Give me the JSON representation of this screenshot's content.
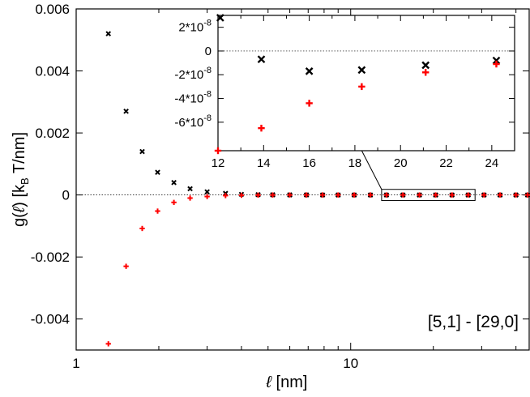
{
  "chart_data": [
    {
      "type": "scatter",
      "xscale": "log",
      "xlim": [
        1,
        45
      ],
      "ylim": [
        -0.005,
        0.006
      ],
      "xticks": [
        1,
        10
      ],
      "xtick_labels": [
        "1",
        "10"
      ],
      "yticks": [
        -0.004,
        -0.002,
        0,
        0.002,
        0.004,
        0.006
      ],
      "ytick_labels": [
        "-0.004",
        "-0.002",
        "0",
        "0.002",
        "0.004",
        "0.006"
      ],
      "xlabel_symbol": "ℓ",
      "xlabel_unit": " [nm]",
      "ylabel_prefix": "g(",
      "ylabel_symbol": "ℓ",
      "ylabel_mid": ") [k",
      "ylabel_sub": "B",
      "ylabel_suffix": " T/nm]",
      "zero_line": true,
      "annotation": "[5,1] - [29,0]",
      "series": [
        {
          "name": "black",
          "marker": "x",
          "color": "#000000",
          "x": [
            1.31,
            1.52,
            1.74,
            1.98,
            2.27,
            2.6,
            3.0,
            3.5,
            4.0,
            4.6,
            5.2,
            6.0,
            6.9,
            7.9,
            9.0,
            10.3,
            11.8,
            13.5,
            15.5,
            17.8,
            20.4,
            23.4,
            26.8,
            30.6,
            35.0,
            40.0,
            45.0
          ],
          "y": [
            0.0052,
            0.0027,
            0.0014,
            0.00073,
            0.0004,
            0.0002,
            0.0001,
            5e-05,
            2e-05,
            1e-05,
            5e-06,
            2e-06,
            1e-06,
            0,
            0,
            0,
            0,
            0,
            0,
            0,
            0,
            0,
            0,
            0,
            0,
            0,
            0
          ]
        },
        {
          "name": "red",
          "marker": "+",
          "color": "#ff0000",
          "x": [
            1.31,
            1.52,
            1.74,
            1.98,
            2.27,
            2.6,
            3.0,
            3.5,
            4.0,
            4.6,
            5.2,
            6.0,
            6.9,
            7.9,
            9.0,
            10.3,
            11.8,
            13.5,
            15.5,
            17.8,
            20.4,
            23.4,
            26.8,
            30.6,
            35.0,
            40.0,
            45.0
          ],
          "y": [
            -0.0048,
            -0.0023,
            -0.00108,
            -0.00052,
            -0.00024,
            -0.0001,
            -5e-05,
            -2e-05,
            -1e-05,
            -5e-06,
            -2e-06,
            -1e-06,
            0,
            0,
            0,
            0,
            0,
            0,
            0,
            0,
            0,
            0,
            0,
            0,
            0,
            0,
            0
          ]
        }
      ],
      "zoom_box_xrange": [
        13.5,
        28
      ],
      "zoom_box_yrange": [
        -5e-05,
        5e-05
      ]
    },
    {
      "type": "scatter",
      "role": "inset",
      "xlim": [
        12,
        25
      ],
      "ylim": [
        -8.4e-08,
        3e-08
      ],
      "xticks": [
        12,
        14,
        16,
        18,
        20,
        22,
        24
      ],
      "xtick_labels": [
        "12",
        "14",
        "16",
        "18",
        "20",
        "22",
        "24"
      ],
      "yticks": [
        2e-08,
        0,
        -2e-08,
        -4e-08,
        -6e-08
      ],
      "ytick_labels": [
        "2*10",
        "0",
        "-2*10",
        "-4*10",
        "-6*10"
      ],
      "ytick_exponents": [
        "-8",
        "",
        "-8",
        "-8",
        "-8"
      ],
      "zero_line": true,
      "series": [
        {
          "name": "black",
          "marker": "x",
          "color": "#000000",
          "x": [
            12.1,
            13.9,
            16.0,
            18.3,
            21.1,
            24.2
          ],
          "y": [
            2.8e-08,
            -7e-09,
            -1.7e-08,
            -1.6e-08,
            -1.2e-08,
            -8e-09
          ]
        },
        {
          "name": "red",
          "marker": "+",
          "color": "#ff0000",
          "x": [
            12.0,
            13.9,
            16.0,
            18.3,
            21.1,
            24.2
          ],
          "y": [
            -8.4e-08,
            -6.5e-08,
            -4.4e-08,
            -3e-08,
            -1.8e-08,
            -1.1e-08
          ]
        }
      ]
    }
  ]
}
